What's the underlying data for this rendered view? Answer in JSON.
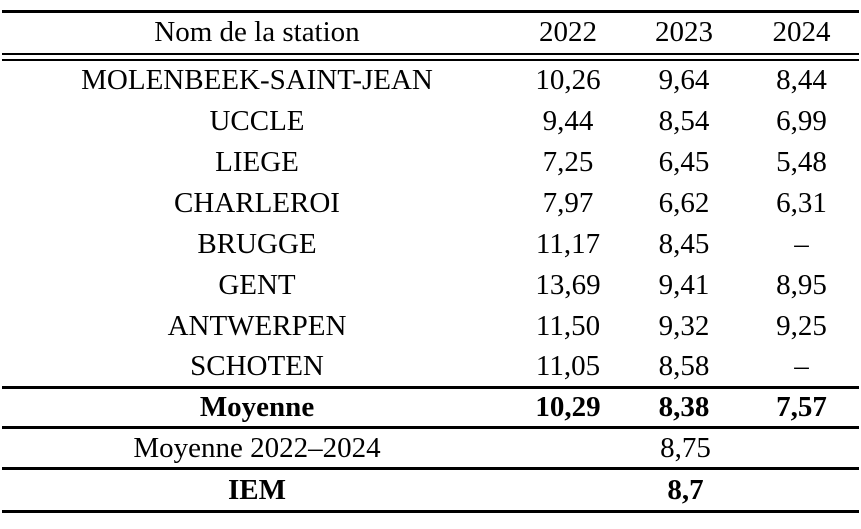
{
  "table": {
    "header": {
      "station_label": "Nom de la station",
      "years": [
        "2022",
        "2023",
        "2024"
      ]
    },
    "rows": [
      {
        "station": "MOLENBEEK-SAINT-JEAN",
        "values": [
          "10,26",
          "9,64",
          "8,44"
        ]
      },
      {
        "station": "UCCLE",
        "values": [
          "9,44",
          "8,54",
          "6,99"
        ]
      },
      {
        "station": "LIEGE",
        "values": [
          "7,25",
          "6,45",
          "5,48"
        ]
      },
      {
        "station": "CHARLEROI",
        "values": [
          "7,97",
          "6,62",
          "6,31"
        ]
      },
      {
        "station": "BRUGGE",
        "values": [
          "11,17",
          "8,45",
          "–"
        ]
      },
      {
        "station": "GENT",
        "values": [
          "13,69",
          "9,41",
          "8,95"
        ]
      },
      {
        "station": "ANTWERPEN",
        "values": [
          "11,50",
          "9,32",
          "9,25"
        ]
      },
      {
        "station": "SCHOTEN",
        "values": [
          "11,05",
          "8,58",
          "–"
        ]
      }
    ],
    "summary": {
      "moyenne": {
        "label": "Moyenne",
        "values": [
          "10,29",
          "8,38",
          "7,57"
        ]
      },
      "moyenne_globale": {
        "label": "Moyenne 2022–2024",
        "value": "8,75"
      },
      "iem": {
        "label": "IEM",
        "value": "8,7"
      }
    }
  },
  "colors": {
    "text": "#000000",
    "background": "#ffffff",
    "rule": "#000000"
  }
}
